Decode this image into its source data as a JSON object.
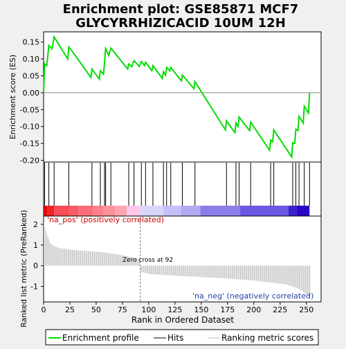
{
  "chart_data": {
    "type": "line",
    "title_line1": "Enrichment plot: GSE85871 MCF7",
    "title_line2": "GLYCYRRHIZICACID 10UM 12H",
    "xlabel": "Rank in Ordered Dataset",
    "panels": {
      "es": {
        "ylabel": "Enrichment score (ES)",
        "ylim": [
          -0.205,
          0.18
        ],
        "yticks": [
          0.15,
          0.1,
          0.05,
          0.0,
          -0.05,
          -0.1,
          -0.15,
          -0.2
        ],
        "ytick_labels": [
          "0.15",
          "0.10",
          "0.05",
          "0.00",
          "-0.05",
          "-0.10",
          "-0.15",
          "-0.20"
        ],
        "color": "#00dd00",
        "points": [
          [
            0,
            0.0
          ],
          [
            1,
            0.085
          ],
          [
            3,
            0.08
          ],
          [
            5,
            0.14
          ],
          [
            8,
            0.13
          ],
          [
            10,
            0.165
          ],
          [
            23,
            0.1
          ],
          [
            24,
            0.135
          ],
          [
            29,
            0.115
          ],
          [
            45,
            0.045
          ],
          [
            46,
            0.07
          ],
          [
            53,
            0.04
          ],
          [
            54,
            0.065
          ],
          [
            57,
            0.055
          ],
          [
            58,
            0.09
          ],
          [
            59,
            0.13
          ],
          [
            62,
            0.11
          ],
          [
            64,
            0.132
          ],
          [
            80,
            0.07
          ],
          [
            81,
            0.085
          ],
          [
            84,
            0.077
          ],
          [
            86,
            0.095
          ],
          [
            91,
            0.078
          ],
          [
            93,
            0.092
          ],
          [
            96,
            0.08
          ],
          [
            97,
            0.09
          ],
          [
            103,
            0.065
          ],
          [
            104,
            0.08
          ],
          [
            113,
            0.042
          ],
          [
            114,
            0.062
          ],
          [
            116,
            0.052
          ],
          [
            117,
            0.075
          ],
          [
            120,
            0.065
          ],
          [
            121,
            0.075
          ],
          [
            131,
            0.035
          ],
          [
            132,
            0.052
          ],
          [
            143,
            0.012
          ],
          [
            144,
            0.033
          ],
          [
            173,
            -0.11
          ],
          [
            174,
            -0.083
          ],
          [
            182,
            -0.118
          ],
          [
            183,
            -0.09
          ],
          [
            185,
            -0.1
          ],
          [
            186,
            -0.072
          ],
          [
            196,
            -0.112
          ],
          [
            197,
            -0.087
          ],
          [
            215,
            -0.17
          ],
          [
            216,
            -0.14
          ],
          [
            218,
            -0.145
          ],
          [
            219,
            -0.11
          ],
          [
            236,
            -0.19
          ],
          [
            237,
            -0.148
          ],
          [
            239,
            -0.15
          ],
          [
            240,
            -0.108
          ],
          [
            242,
            -0.112
          ],
          [
            243,
            -0.07
          ],
          [
            247,
            -0.09
          ],
          [
            248,
            -0.04
          ],
          [
            252,
            -0.06
          ],
          [
            253,
            -0.001
          ]
        ]
      },
      "hits": {
        "positions": [
          1,
          5,
          10,
          24,
          46,
          54,
          58,
          59,
          64,
          81,
          86,
          93,
          97,
          104,
          114,
          117,
          121,
          132,
          144,
          174,
          183,
          186,
          197,
          216,
          219,
          237,
          240,
          243,
          248,
          253
        ]
      },
      "metric": {
        "ylabel": "Ranked list metric (PreRanked)",
        "ylim": [
          -1.75,
          2.4
        ],
        "yticks": [
          2,
          1,
          0,
          -1
        ],
        "ytick_labels": [
          "2",
          "1",
          "0",
          "-1"
        ],
        "knots": [
          [
            0,
            2.1
          ],
          [
            1,
            1.8
          ],
          [
            3,
            1.5
          ],
          [
            6,
            1.1
          ],
          [
            10,
            0.95
          ],
          [
            15,
            0.85
          ],
          [
            30,
            0.75
          ],
          [
            50,
            0.68
          ],
          [
            70,
            0.55
          ],
          [
            85,
            0.4
          ],
          [
            91,
            0.3
          ],
          [
            92,
            -0.3
          ],
          [
            100,
            -0.4
          ],
          [
            130,
            -0.5
          ],
          [
            170,
            -0.6
          ],
          [
            200,
            -0.72
          ],
          [
            230,
            -0.9
          ],
          [
            242,
            -1.1
          ],
          [
            248,
            -1.3
          ],
          [
            253,
            -1.55
          ]
        ],
        "zero_cross": 92,
        "zero_cross_label": "Zero cross at 92",
        "pos_label": "'na_pos' (positively correlated)",
        "neg_label": "'na_neg' (negatively correlated)"
      }
    },
    "xlim": [
      0,
      264
    ],
    "xticks": [
      0,
      25,
      50,
      75,
      100,
      125,
      150,
      175,
      200,
      225,
      250
    ],
    "xtick_labels": [
      "0",
      "25",
      "50",
      "75",
      "100",
      "125",
      "150",
      "175",
      "200",
      "225",
      "250"
    ],
    "list_size": 253,
    "colorbar": [
      {
        "from": 0,
        "to": 3,
        "color": "#dd0000"
      },
      {
        "from": 3,
        "to": 10,
        "color": "#ee2222"
      },
      {
        "from": 10,
        "to": 24,
        "color": "#f84b55"
      },
      {
        "from": 24,
        "to": 33,
        "color": "#f85a63"
      },
      {
        "from": 33,
        "to": 47,
        "color": "#fb6d79"
      },
      {
        "from": 47,
        "to": 57,
        "color": "#fc7f8b"
      },
      {
        "from": 57,
        "to": 68,
        "color": "#fd919c"
      },
      {
        "from": 68,
        "to": 79,
        "color": "#fda6b0"
      },
      {
        "from": 79,
        "to": 92,
        "color": "#fdc6ea"
      },
      {
        "from": 92,
        "to": 114,
        "color": "#d7d5f9"
      },
      {
        "from": 114,
        "to": 131,
        "color": "#c4c0f7"
      },
      {
        "from": 131,
        "to": 149,
        "color": "#b2aaf3"
      },
      {
        "from": 149,
        "to": 187,
        "color": "#8a7ee8"
      },
      {
        "from": 187,
        "to": 233,
        "color": "#6a5ae3"
      },
      {
        "from": 233,
        "to": 241,
        "color": "#3b22cf"
      },
      {
        "from": 241,
        "to": 253,
        "color": "#2a06c4"
      }
    ],
    "legend": [
      {
        "label": "Enrichment profile",
        "color": "#00dd00"
      },
      {
        "label": "Hits",
        "color": "#000000"
      },
      {
        "label": "Ranking metric scores",
        "color": "#bbbbbb"
      }
    ]
  }
}
